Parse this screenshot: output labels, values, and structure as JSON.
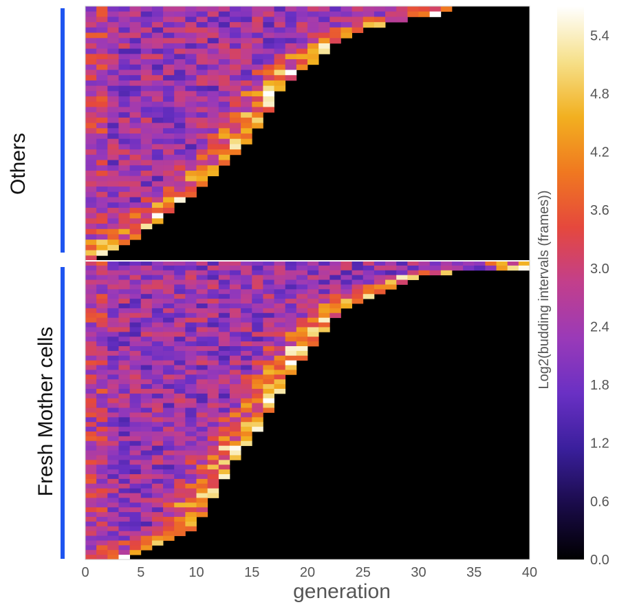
{
  "chart_data": {
    "type": "heatmap",
    "xlabel": "generation",
    "xlim": [
      0,
      40
    ],
    "x_ticks": [
      "0",
      "5",
      "10",
      "15",
      "20",
      "25",
      "30",
      "35",
      "40"
    ],
    "colorbar": {
      "label": "Log2(budding intervals (frames))",
      "range": [
        0.0,
        5.7
      ],
      "ticks": [
        "0.0",
        "0.6",
        "1.2",
        "1.8",
        "2.4",
        "3.0",
        "3.6",
        "4.2",
        "4.8",
        "5.4"
      ],
      "colormap": [
        "#000000",
        "#1a0b4a",
        "#3a1f9c",
        "#6a30c4",
        "#9a3ab8",
        "#c23f8c",
        "#e5483d",
        "#f07820",
        "#f2b020",
        "#f6e08a",
        "#ffffff"
      ]
    },
    "groups": [
      {
        "label": "Others",
        "bar_color": "#1f55f0",
        "lifespans": [
          33,
          32,
          29,
          27,
          25,
          24,
          23,
          22,
          22,
          21,
          21,
          20,
          19,
          19,
          18,
          18,
          17,
          17,
          17,
          17,
          16,
          16,
          16,
          15,
          15,
          15,
          14,
          14,
          13,
          13,
          12,
          12,
          11,
          11,
          10,
          10,
          9,
          8,
          8,
          7,
          7,
          6,
          5,
          5,
          4,
          3,
          2,
          1
        ],
        "approx_interval_range": [
          1.4,
          3.2
        ],
        "near_death_intervals": "rise to 3.5-5.5 in final generations"
      },
      {
        "label": "Fresh Mother cells",
        "bar_color": "#1f55f0",
        "lifespans": [
          40,
          40,
          33,
          30,
          29,
          28,
          27,
          26,
          25,
          24,
          23,
          23,
          22,
          22,
          22,
          21,
          21,
          21,
          20,
          20,
          20,
          19,
          19,
          19,
          18,
          18,
          18,
          18,
          17,
          17,
          17,
          17,
          16,
          16,
          16,
          16,
          15,
          15,
          15,
          14,
          14,
          14,
          13,
          13,
          13,
          13,
          12,
          12,
          12,
          12,
          11,
          11,
          11,
          11,
          10,
          10,
          10,
          9,
          8,
          7,
          6,
          5,
          4
        ],
        "approx_interval_range": [
          1.4,
          3.2
        ],
        "near_death_intervals": "rise to 3.5-5.5 in final generations"
      }
    ]
  }
}
